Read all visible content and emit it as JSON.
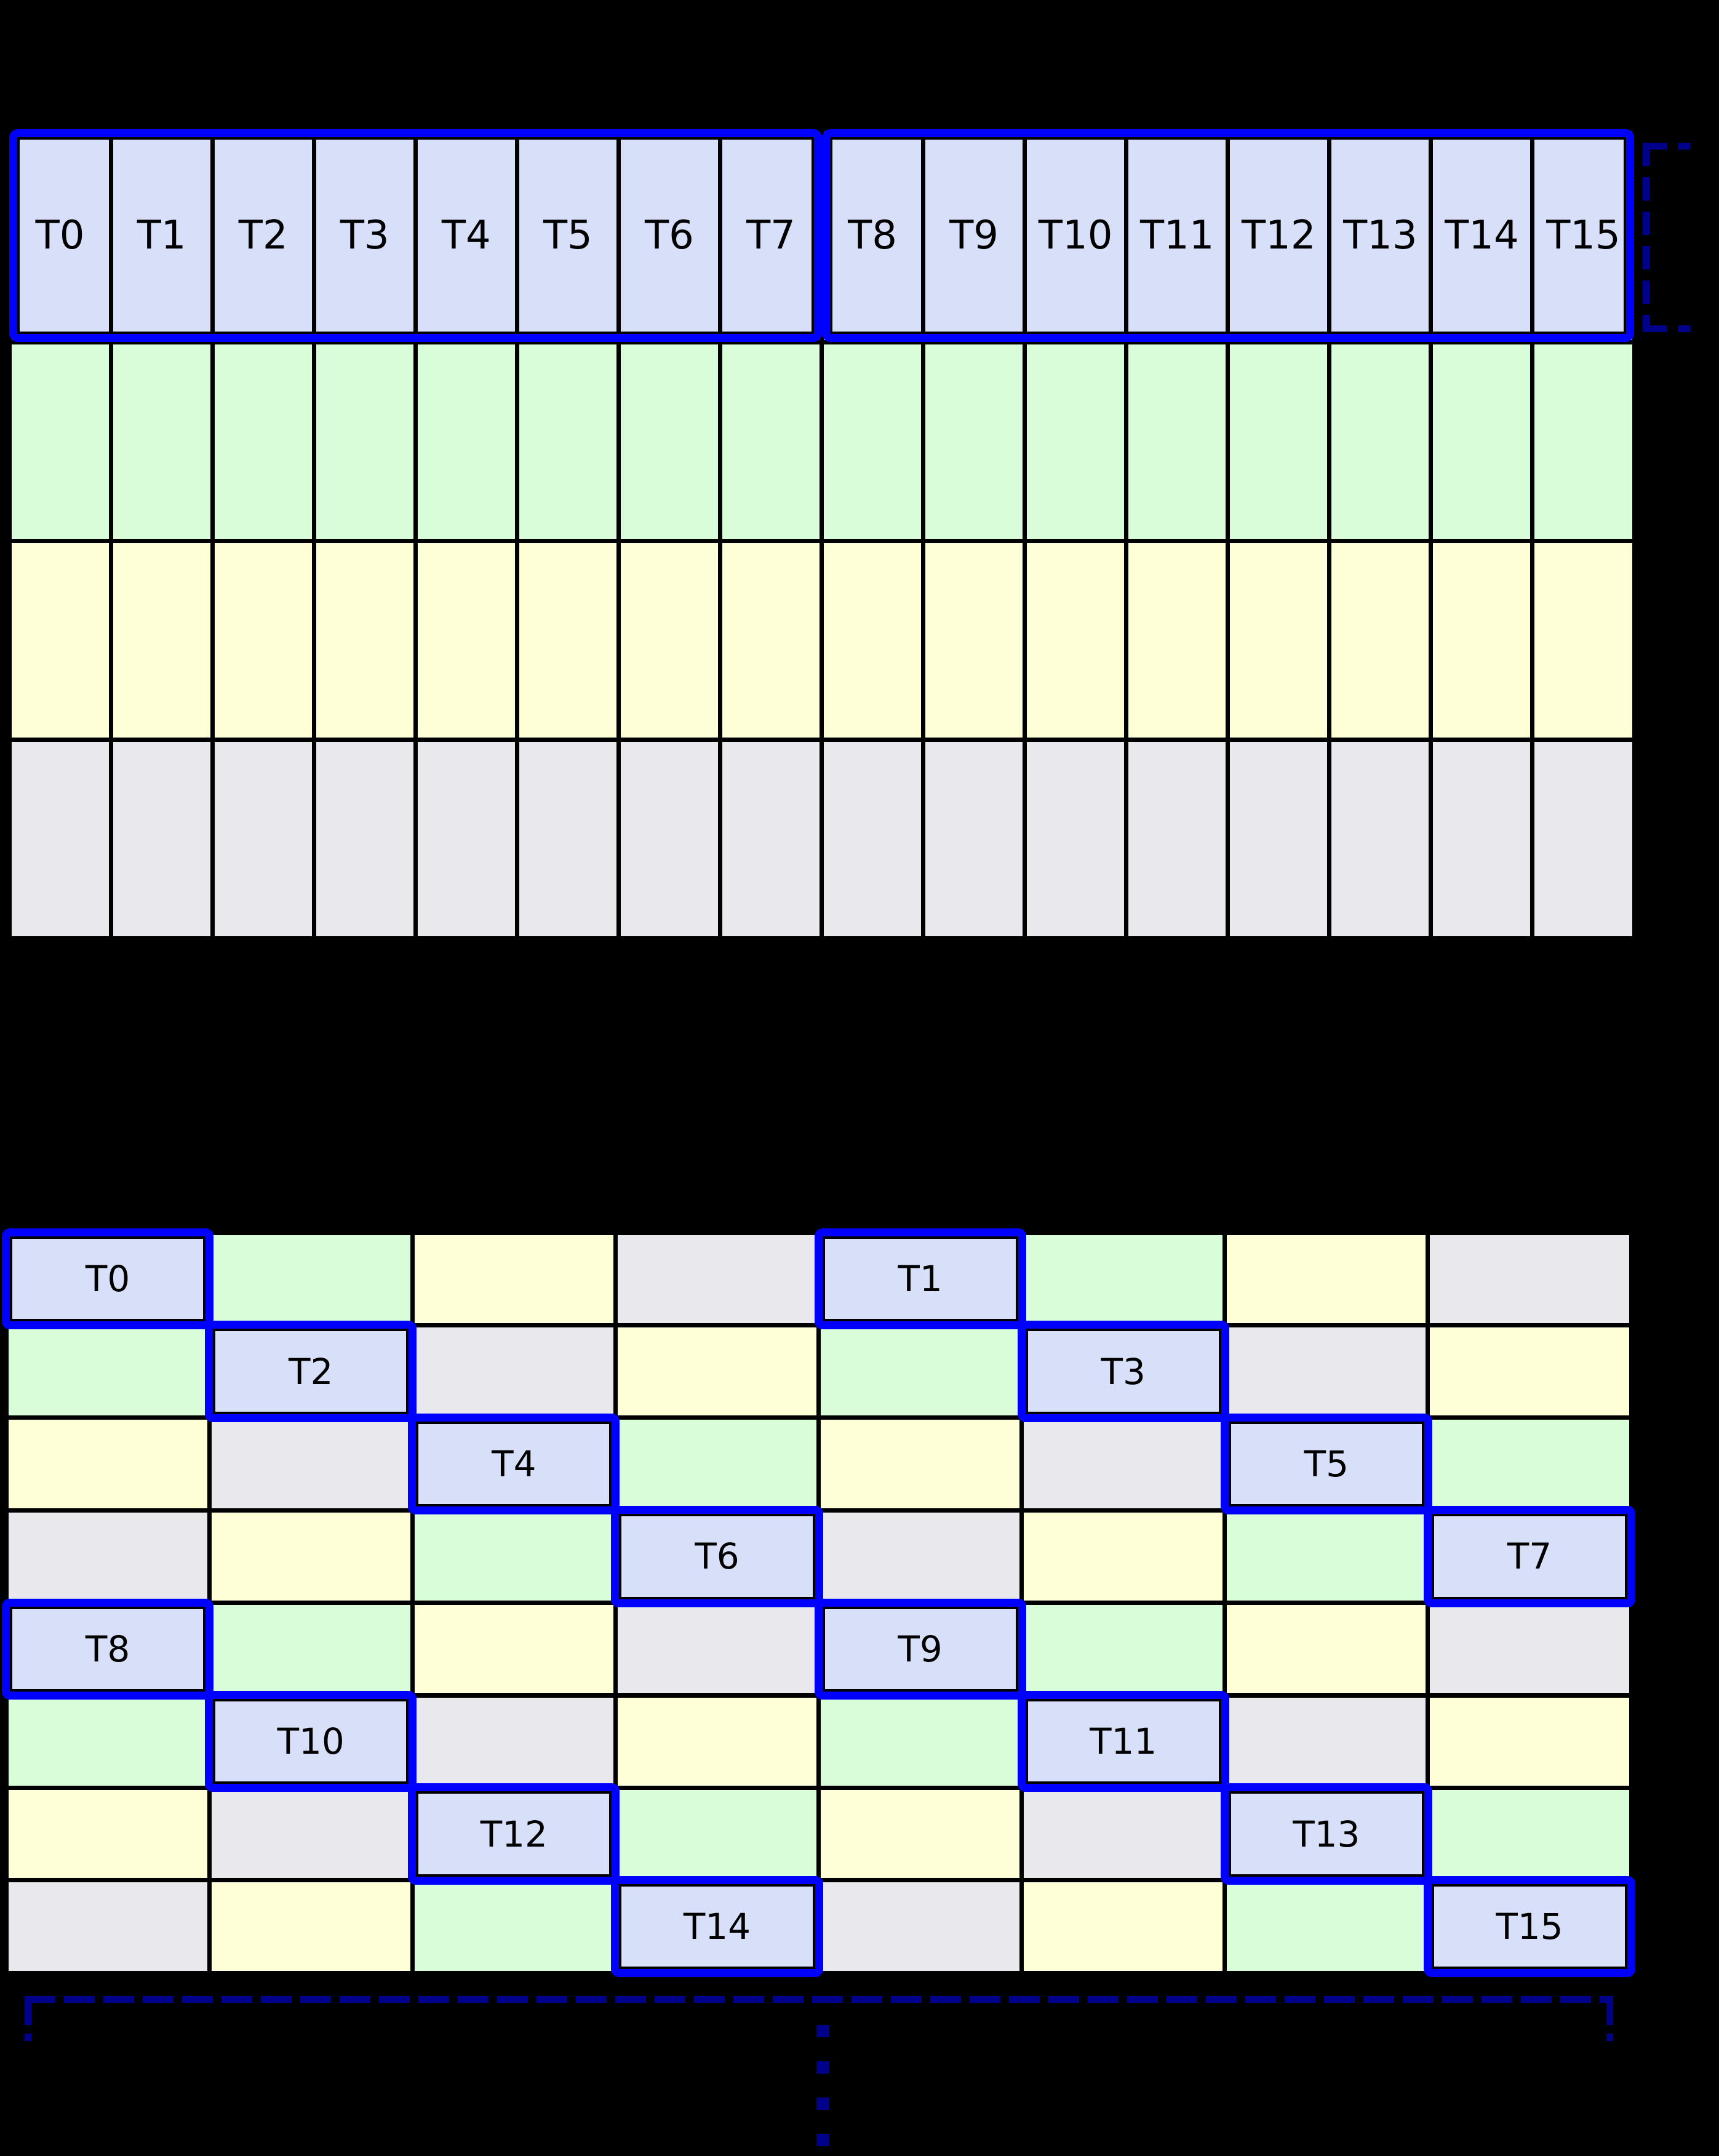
{
  "palette": {
    "background": "#000000",
    "text": "#000000",
    "lavender": "#D8DFF8",
    "green": "#D8FDD8",
    "yellow": "#FFFFD7",
    "gray": "#E9E9ED",
    "selection_blue": "#0000FF",
    "bracket_navy": "#00008B"
  },
  "top_grid": {
    "columns": 16,
    "thread_labels": [
      "T0",
      "T1",
      "T2",
      "T3",
      "T4",
      "T5",
      "T6",
      "T7",
      "T8",
      "T9",
      "T10",
      "T11",
      "T12",
      "T13",
      "T14",
      "T15"
    ],
    "thread_row_fill": "lavender",
    "plain_rows": [
      {
        "fill": "green"
      },
      {
        "fill": "yellow"
      },
      {
        "fill": "gray"
      }
    ],
    "warp_groups": [
      {
        "start": 0,
        "end": 7
      },
      {
        "start": 8,
        "end": 15
      }
    ]
  },
  "bottom_grid": {
    "columns": 8,
    "rows": 8,
    "color_cycle": [
      "lavender",
      "green",
      "yellow",
      "gray"
    ],
    "color_rule": "color index = (col % 4) XOR (row % 4)",
    "threads": [
      {
        "label": "T0",
        "row": 0,
        "col": 0
      },
      {
        "label": "T1",
        "row": 0,
        "col": 4
      },
      {
        "label": "T2",
        "row": 1,
        "col": 1
      },
      {
        "label": "T3",
        "row": 1,
        "col": 5
      },
      {
        "label": "T4",
        "row": 2,
        "col": 2
      },
      {
        "label": "T5",
        "row": 2,
        "col": 6
      },
      {
        "label": "T6",
        "row": 3,
        "col": 3
      },
      {
        "label": "T7",
        "row": 3,
        "col": 7
      },
      {
        "label": "T8",
        "row": 4,
        "col": 0
      },
      {
        "label": "T9",
        "row": 4,
        "col": 4
      },
      {
        "label": "T10",
        "row": 5,
        "col": 1
      },
      {
        "label": "T11",
        "row": 5,
        "col": 5
      },
      {
        "label": "T12",
        "row": 6,
        "col": 2
      },
      {
        "label": "T13",
        "row": 6,
        "col": 6
      },
      {
        "label": "T14",
        "row": 7,
        "col": 3
      },
      {
        "label": "T15",
        "row": 7,
        "col": 7
      }
    ]
  },
  "annotations": {
    "right_bracket": {
      "style": "dashed",
      "color_key": "bracket_navy"
    },
    "bottom_bracket": {
      "style": "dashed",
      "color_key": "bracket_navy"
    },
    "continuation_dots": {
      "style": "dashed",
      "color_key": "bracket_navy",
      "count": 4
    }
  }
}
